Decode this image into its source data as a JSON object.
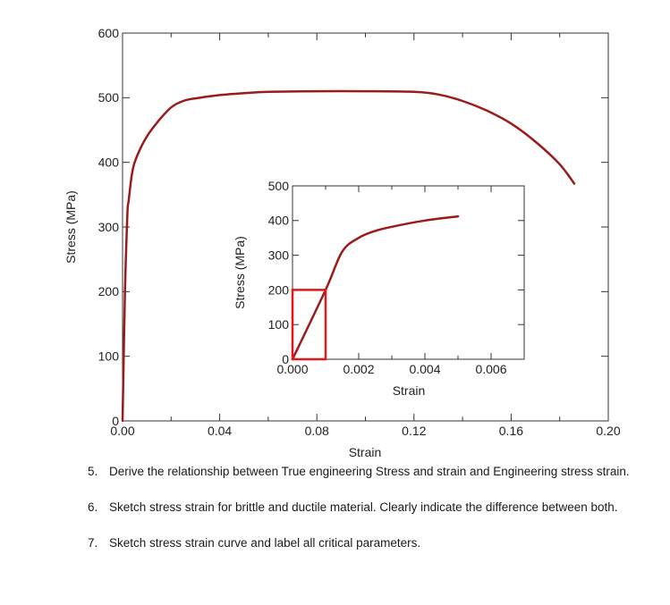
{
  "chart_data": [
    {
      "type": "line",
      "title": "",
      "xlabel": "Strain",
      "ylabel": "Stress (MPa)",
      "xlim": [
        0,
        0.2
      ],
      "ylim": [
        0,
        600
      ],
      "x_ticks": [
        0,
        0.04,
        0.08,
        0.12,
        0.16,
        0.2
      ],
      "x_tick_labels": [
        "0.00",
        "0.04",
        "0.08",
        "0.12",
        "0.16",
        "0.20"
      ],
      "y_ticks": [
        0,
        100,
        200,
        300,
        400,
        500,
        600
      ],
      "y_tick_labels": [
        "0",
        "100",
        "200",
        "300",
        "400",
        "500",
        "600"
      ],
      "grid": false,
      "series": [
        {
          "color": "#9b1b1b",
          "x": [
            0,
            0.001,
            0.002,
            0.0025,
            0.004,
            0.006,
            0.01,
            0.015,
            0.02,
            0.025,
            0.03,
            0.04,
            0.05,
            0.06,
            0.08,
            0.1,
            0.12,
            0.13,
            0.14,
            0.15,
            0.16,
            0.17,
            0.18,
            0.186
          ],
          "y": [
            0,
            200,
            320,
            340,
            385,
            410,
            440,
            465,
            485,
            495,
            499,
            504,
            507,
            509,
            510,
            510,
            509,
            505,
            495,
            480,
            460,
            432,
            397,
            367
          ]
        }
      ]
    },
    {
      "type": "line",
      "title": "",
      "xlabel": "Strain",
      "ylabel": "Stress (MPa)",
      "xlim": [
        0,
        0.007
      ],
      "ylim": [
        0,
        500
      ],
      "x_ticks": [
        0,
        0.002,
        0.004,
        0.006
      ],
      "x_tick_labels": [
        "0.000",
        "0.002",
        "0.004",
        "0.006"
      ],
      "y_ticks": [
        0,
        100,
        200,
        300,
        400,
        500
      ],
      "y_tick_labels": [
        "0",
        "100",
        "200",
        "300",
        "400",
        "500"
      ],
      "grid": false,
      "highlight_box": {
        "x": [
          0,
          0.001
        ],
        "y": [
          0,
          200
        ],
        "color": "#e01818"
      },
      "series": [
        {
          "color": "#9b1b1b",
          "x": [
            0,
            0.001,
            0.0015,
            0.002,
            0.0025,
            0.003,
            0.004,
            0.005
          ],
          "y": [
            0,
            200,
            310,
            350,
            370,
            382,
            400,
            412
          ]
        }
      ]
    }
  ],
  "questions": [
    {
      "number": "5.",
      "text": "Derive the relationship between True engineering Stress and strain and Engineering stress strain."
    },
    {
      "number": "6.",
      "text": "Sketch stress strain for brittle and ductile material.  Clearly indicate the difference between both."
    },
    {
      "number": "7.",
      "text": "Sketch stress strain curve and label all critical parameters."
    }
  ]
}
